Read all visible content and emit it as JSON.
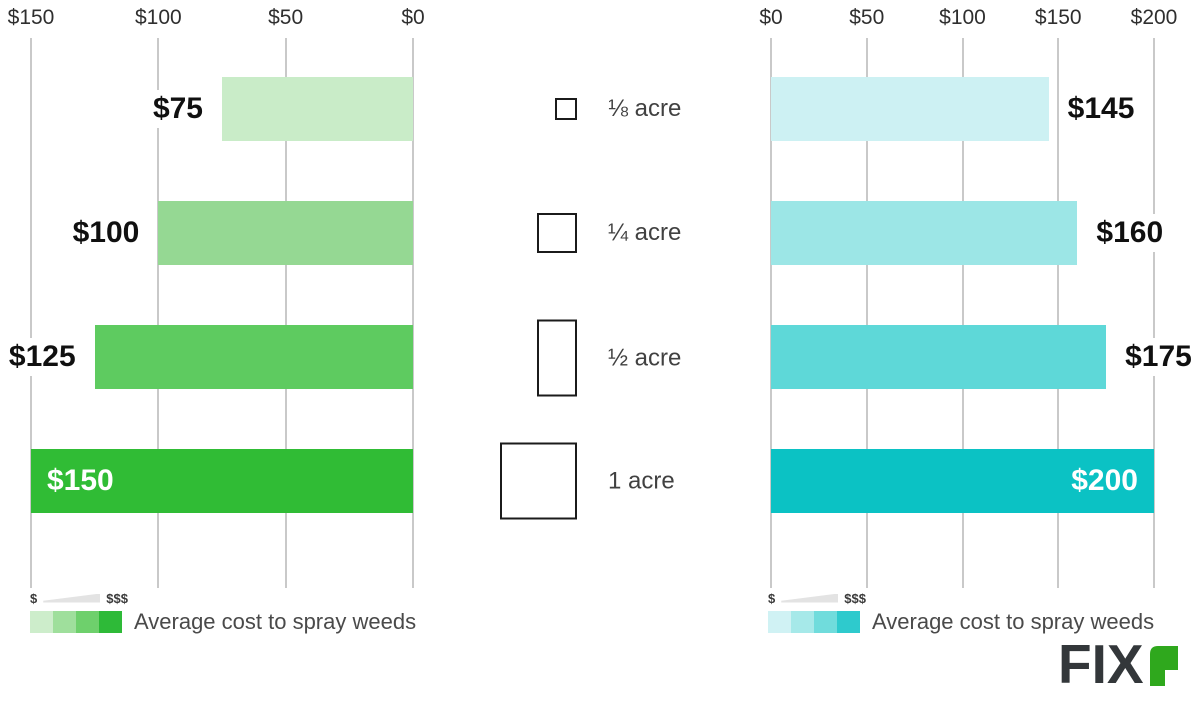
{
  "chart_data": [
    {
      "type": "bar",
      "orientation": "horizontal",
      "side": "left",
      "categories": [
        "⅛ acre",
        "¼ acre",
        "½ acre",
        "1 acre"
      ],
      "values": [
        75,
        100,
        125,
        150
      ],
      "value_labels": [
        "$75",
        "$100",
        "$125",
        "$150"
      ],
      "bar_colors": [
        "#c9ecc8",
        "#95d893",
        "#5ecb60",
        "#30bc35"
      ],
      "axis": {
        "ticks": [
          "$150",
          "$100",
          "$50",
          "$0"
        ],
        "tick_values": [
          150,
          100,
          50,
          0
        ],
        "xlim": [
          0,
          150
        ],
        "direction": "rtl",
        "grid": true,
        "grid_color": "#c9c9c9"
      },
      "inside_label_index": 3,
      "legend": {
        "min_label": "$",
        "max_label": "$$$",
        "swatches": [
          "#cdedcb",
          "#9fdf9c",
          "#6ed06c",
          "#2eba38"
        ],
        "caption": "Average cost to spray weeds"
      }
    },
    {
      "type": "bar",
      "orientation": "horizontal",
      "side": "right",
      "categories": [
        "⅛ acre",
        "¼ acre",
        "½ acre",
        "1 acre"
      ],
      "values": [
        145,
        160,
        175,
        200
      ],
      "value_labels": [
        "$145",
        "$160",
        "$175",
        "$200"
      ],
      "bar_colors": [
        "#cdf1f3",
        "#9ce6e6",
        "#5ed8d8",
        "#0bc2c4"
      ],
      "axis": {
        "ticks": [
          "$0",
          "$50",
          "$100",
          "$150",
          "$200"
        ],
        "tick_values": [
          0,
          50,
          100,
          150,
          200
        ],
        "xlim": [
          0,
          200
        ],
        "direction": "ltr",
        "grid": true,
        "grid_color": "#c9c9c9"
      },
      "inside_label_index": 3,
      "legend": {
        "min_label": "$",
        "max_label": "$$$",
        "swatches": [
          "#d0f2f4",
          "#a6e9e9",
          "#70dcdc",
          "#2ecacd"
        ],
        "caption": "Average cost to spray weeds"
      }
    }
  ],
  "size_key": {
    "labels": [
      "⅛ acre",
      "¼ acre",
      "½ acre",
      "1 acre"
    ]
  },
  "footer": {
    "logo": {
      "text": "FIX",
      "accent_glyph": "r",
      "text_color": "#33373a",
      "accent_color": "#2fa81d"
    }
  }
}
